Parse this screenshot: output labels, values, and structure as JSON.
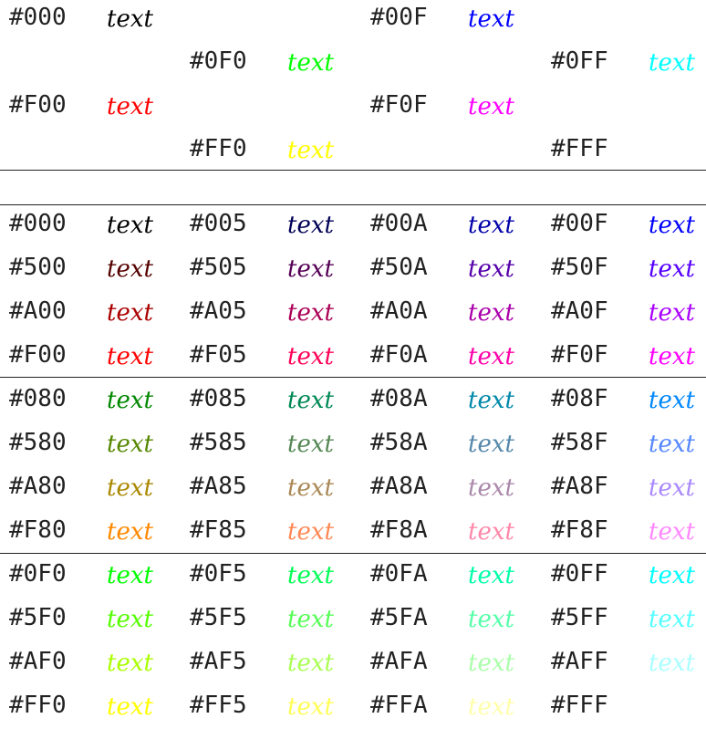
{
  "sample_text": "text",
  "sections": [
    {
      "rows": [
        [
          {
            "code": "#000",
            "color": "#000000"
          },
          null,
          {
            "code": "#00F",
            "color": "#0000FF"
          },
          null
        ],
        [
          null,
          {
            "code": "#0F0",
            "color": "#00FF00"
          },
          null,
          {
            "code": "#0FF",
            "color": "#00FFFF"
          }
        ],
        [
          {
            "code": "#F00",
            "color": "#FF0000"
          },
          null,
          {
            "code": "#F0F",
            "color": "#FF00FF"
          },
          null
        ],
        [
          null,
          {
            "code": "#FF0",
            "color": "#FFFF00"
          },
          null,
          {
            "code": "#FFF",
            "color": "#FFFFFF"
          }
        ]
      ]
    },
    {
      "rows": [
        [
          {
            "code": "#000",
            "color": "#000000"
          },
          {
            "code": "#005",
            "color": "#000055"
          },
          {
            "code": "#00A",
            "color": "#0000AA"
          },
          {
            "code": "#00F",
            "color": "#0000FF"
          }
        ],
        [
          {
            "code": "#500",
            "color": "#550000"
          },
          {
            "code": "#505",
            "color": "#550055"
          },
          {
            "code": "#50A",
            "color": "#5500AA"
          },
          {
            "code": "#50F",
            "color": "#5500FF"
          }
        ],
        [
          {
            "code": "#A00",
            "color": "#AA0000"
          },
          {
            "code": "#A05",
            "color": "#AA0055"
          },
          {
            "code": "#A0A",
            "color": "#AA00AA"
          },
          {
            "code": "#A0F",
            "color": "#AA00FF"
          }
        ],
        [
          {
            "code": "#F00",
            "color": "#FF0000"
          },
          {
            "code": "#F05",
            "color": "#FF0055"
          },
          {
            "code": "#F0A",
            "color": "#FF00AA"
          },
          {
            "code": "#F0F",
            "color": "#FF00FF"
          }
        ]
      ]
    },
    {
      "rows": [
        [
          {
            "code": "#080",
            "color": "#008800"
          },
          {
            "code": "#085",
            "color": "#008855"
          },
          {
            "code": "#08A",
            "color": "#0088AA"
          },
          {
            "code": "#08F",
            "color": "#0088FF"
          }
        ],
        [
          {
            "code": "#580",
            "color": "#558800"
          },
          {
            "code": "#585",
            "color": "#558855"
          },
          {
            "code": "#58A",
            "color": "#5588AA"
          },
          {
            "code": "#58F",
            "color": "#5588FF"
          }
        ],
        [
          {
            "code": "#A80",
            "color": "#AA8800"
          },
          {
            "code": "#A85",
            "color": "#AA8855"
          },
          {
            "code": "#A8A",
            "color": "#AA88AA"
          },
          {
            "code": "#A8F",
            "color": "#AA88FF"
          }
        ],
        [
          {
            "code": "#F80",
            "color": "#FF8800"
          },
          {
            "code": "#F85",
            "color": "#FF8855"
          },
          {
            "code": "#F8A",
            "color": "#FF88AA"
          },
          {
            "code": "#F8F",
            "color": "#FF88FF"
          }
        ]
      ]
    },
    {
      "rows": [
        [
          {
            "code": "#0F0",
            "color": "#00FF00"
          },
          {
            "code": "#0F5",
            "color": "#00FF55"
          },
          {
            "code": "#0FA",
            "color": "#00FFAA"
          },
          {
            "code": "#0FF",
            "color": "#00FFFF"
          }
        ],
        [
          {
            "code": "#5F0",
            "color": "#55FF00"
          },
          {
            "code": "#5F5",
            "color": "#55FF55"
          },
          {
            "code": "#5FA",
            "color": "#55FFAA"
          },
          {
            "code": "#5FF",
            "color": "#55FFFF"
          }
        ],
        [
          {
            "code": "#AF0",
            "color": "#AAFF00"
          },
          {
            "code": "#AF5",
            "color": "#AAFF55"
          },
          {
            "code": "#AFA",
            "color": "#AAFFAA"
          },
          {
            "code": "#AFF",
            "color": "#AAFFFF"
          }
        ],
        [
          {
            "code": "#FF0",
            "color": "#FFFF00"
          },
          {
            "code": "#FF5",
            "color": "#FFFF55"
          },
          {
            "code": "#FFA",
            "color": "#FFFFAA"
          },
          {
            "code": "#FFF",
            "color": "#FFFFFF"
          }
        ]
      ]
    }
  ]
}
